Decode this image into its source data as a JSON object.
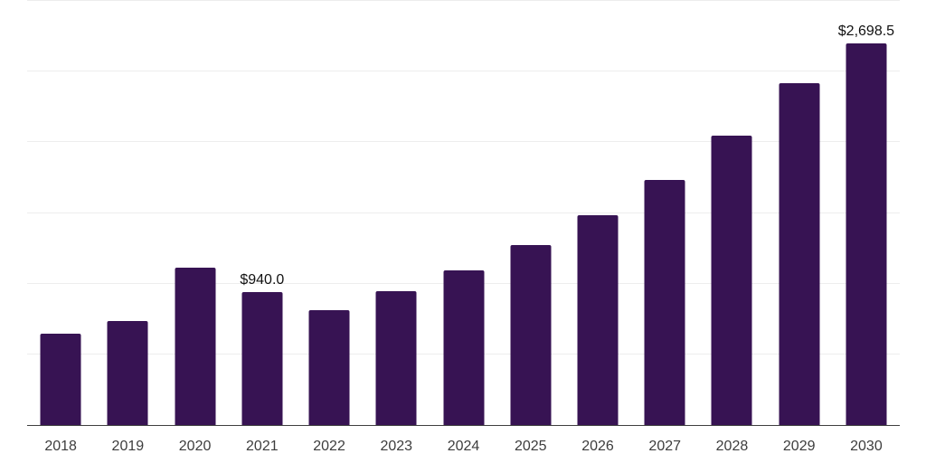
{
  "chart_data": {
    "type": "bar",
    "title": "",
    "xlabel": "",
    "ylabel": "",
    "categories": [
      "2018",
      "2019",
      "2020",
      "2021",
      "2022",
      "2023",
      "2024",
      "2025",
      "2026",
      "2027",
      "2028",
      "2029",
      "2030"
    ],
    "values": [
      646,
      737,
      1113,
      940.0,
      815,
      949,
      1094,
      1272,
      1481,
      1736,
      2050,
      2420,
      2698.5
    ],
    "bar_labels": [
      "",
      "",
      "",
      "$940.0",
      "",
      "",
      "",
      "",
      "",
      "",
      "",
      "",
      "$2,698.5"
    ],
    "ylim": [
      0,
      3000
    ],
    "grid_step": 500,
    "grid": true,
    "legend_position": "none",
    "y_axis_labels_visible": false
  },
  "colors": {
    "background": "#ffffff",
    "bar": "#371353",
    "grid": "#ededed",
    "axis": "#3f3f3f",
    "tick_text": "#3d3d3d",
    "data_label_text": "#111111"
  }
}
